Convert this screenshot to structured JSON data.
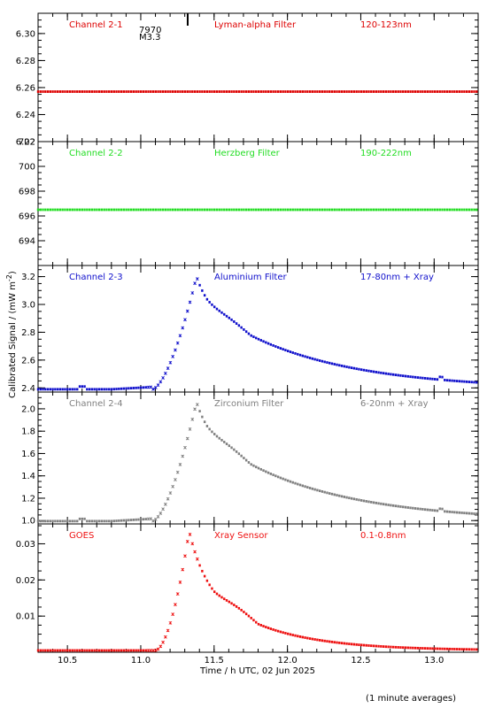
{
  "xlabel": "Time / h UTC, 02 Jun 2025",
  "ylabel": "Calibrated Signal / (mW m",
  "ylabel_sup": "-2",
  "ylabel_close": ")",
  "footer_note": "(1 minute averages)",
  "flare_marker": {
    "region": "7970",
    "class": "M3.3",
    "time_h": 11.32
  },
  "chart_data": [
    {
      "type": "scatter",
      "channel": "Channel 2-1",
      "filter": "Lyman-alpha Filter",
      "wavelength": "120-123nm",
      "color": "#dd0000",
      "xlim": [
        10.3,
        13.3
      ],
      "ylim": [
        6.22,
        6.315
      ],
      "yticks": [
        6.22,
        6.24,
        6.26,
        6.28,
        6.3
      ],
      "ytick_labels": [
        "6.22",
        "6.24",
        "6.26",
        "6.28",
        "6.30"
      ],
      "profile": {
        "baseline": 6.257,
        "peak": 6.257,
        "bump": 0.0
      }
    },
    {
      "type": "scatter",
      "channel": "Channel 2-2",
      "filter": "Herzberg Filter",
      "wavelength": "190-222nm",
      "color": "#22dd22",
      "xlim": [
        10.3,
        13.3
      ],
      "ylim": [
        692,
        702
      ],
      "yticks": [
        694,
        696,
        698,
        700,
        702
      ],
      "ytick_labels": [
        "694",
        "696",
        "698",
        "700",
        "702"
      ],
      "profile": {
        "baseline": 696.5,
        "peak": 696.5,
        "bump": 0.0
      }
    },
    {
      "type": "scatter",
      "channel": "Channel 2-3",
      "filter": "Aluminium Filter",
      "wavelength": "17-80nm + Xray",
      "color": "#1010cc",
      "xlim": [
        10.3,
        13.3
      ],
      "ylim": [
        2.37,
        3.28
      ],
      "yticks": [
        2.4,
        2.6,
        2.8,
        3.0,
        3.2
      ],
      "ytick_labels": [
        "2.4",
        "2.6",
        "2.8",
        "3.0",
        "3.2"
      ],
      "profile": {
        "baseline": 2.39,
        "peak": 3.2,
        "bump": 0.02
      }
    },
    {
      "type": "scatter",
      "channel": "Channel 2-4",
      "filter": "Zirconium Filter",
      "wavelength": "6-20nm + Xray",
      "color": "#808080",
      "xlim": [
        10.3,
        13.3
      ],
      "ylim": [
        0.97,
        2.15
      ],
      "yticks": [
        1.0,
        1.2,
        1.4,
        1.6,
        1.8,
        2.0
      ],
      "ytick_labels": [
        "1.0",
        "1.2",
        "1.4",
        "1.6",
        "1.8",
        "2.0"
      ],
      "profile": {
        "baseline": 0.995,
        "peak": 2.06,
        "bump": 0.02
      }
    },
    {
      "type": "scatter",
      "channel": "GOES",
      "filter": "Xray Sensor",
      "wavelength": "0.1-0.8nm",
      "color": "#ee1111",
      "xlim": [
        10.3,
        13.3
      ],
      "xticks": [
        10.5,
        11.0,
        11.5,
        12.0,
        12.5,
        13.0
      ],
      "xtick_labels": [
        "10.5",
        "11.0",
        "11.5",
        "12.0",
        "12.5",
        "13.0"
      ],
      "ylim": [
        0.0,
        0.0355
      ],
      "yticks": [
        0.01,
        0.02,
        0.03
      ],
      "ytick_labels": [
        "0.01",
        "0.02",
        "0.03"
      ],
      "profile": {
        "baseline": 0.0005,
        "peak": 0.0335,
        "bump": 0.0
      }
    }
  ]
}
